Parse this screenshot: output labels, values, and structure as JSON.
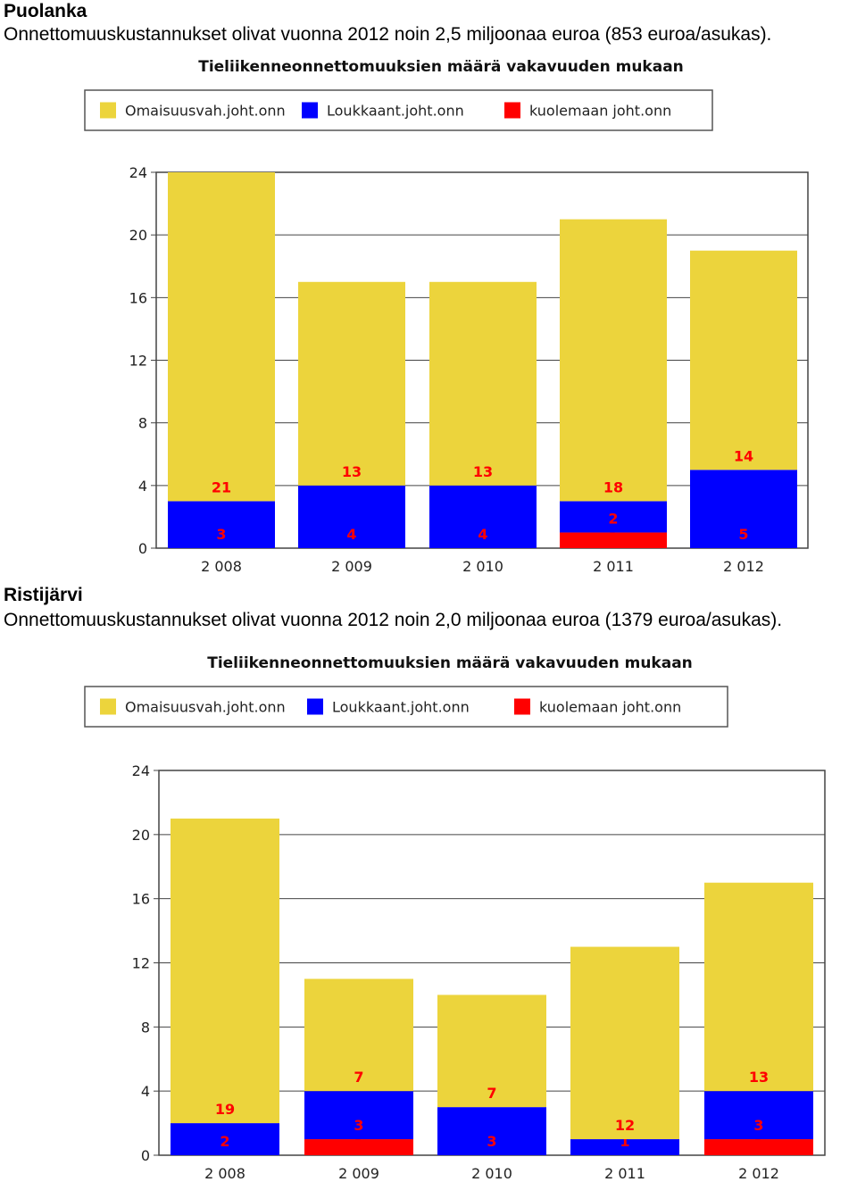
{
  "sections": [
    {
      "name": "Puolanka",
      "description": "Onnettomuuskustannukset olivat vuonna 2012 noin 2,5 miljoonaa euroa (853 euroa/asukas)."
    },
    {
      "name": "Ristijärvi",
      "description": "Onnettomuuskustannukset olivat vuonna 2012 noin 2,0 miljoonaa euroa (1379 euroa/asukas)."
    }
  ],
  "chart_data": [
    {
      "type": "bar",
      "stacked": true,
      "title": "Tieliikenneonnettomuuksien määrä vakavuuden mukaan",
      "legend_position": "top",
      "categories": [
        "2 008",
        "2 009",
        "2 010",
        "2 011",
        "2 012"
      ],
      "series": [
        {
          "name": "Omaisuusvah.joht.onn",
          "color": "#ecd43c",
          "values": [
            21,
            13,
            13,
            18,
            14
          ]
        },
        {
          "name": "Loukkaant.joht.onn",
          "color": "#0000ff",
          "values": [
            3,
            4,
            4,
            2,
            5
          ]
        },
        {
          "name": "kuolemaan joht.onn",
          "color": "#ff0000",
          "values": [
            0,
            0,
            0,
            1,
            0
          ]
        }
      ],
      "y_ticks": [
        "0",
        "4",
        "8",
        "12",
        "16",
        "20",
        "24"
      ],
      "ylim": [
        0,
        24
      ],
      "label_color": "#ff0000"
    },
    {
      "type": "bar",
      "stacked": true,
      "title": "Tieliikenneonnettomuuksien määrä vakavuuden mukaan",
      "legend_position": "top",
      "categories": [
        "2 008",
        "2 009",
        "2 010",
        "2 011",
        "2 012"
      ],
      "series": [
        {
          "name": "Omaisuusvah.joht.onn",
          "color": "#ecd43c",
          "values": [
            19,
            7,
            7,
            12,
            13
          ]
        },
        {
          "name": "Loukkaant.joht.onn",
          "color": "#0000ff",
          "values": [
            2,
            3,
            3,
            1,
            3
          ]
        },
        {
          "name": "kuolemaan joht.onn",
          "color": "#ff0000",
          "values": [
            0,
            1,
            0,
            0,
            1
          ]
        }
      ],
      "y_ticks": [
        "0",
        "4",
        "8",
        "12",
        "16",
        "20",
        "24"
      ],
      "ylim": [
        0,
        24
      ],
      "label_color": "#ff0000"
    }
  ]
}
